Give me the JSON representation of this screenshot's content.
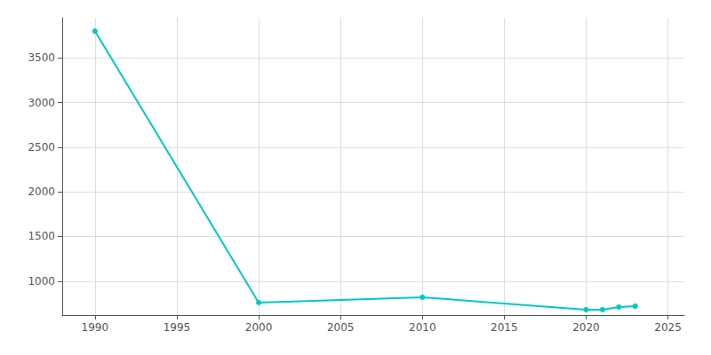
{
  "chart_data": {
    "type": "line",
    "x": [
      1990,
      2000,
      2010,
      2020,
      2021,
      2022,
      2023
    ],
    "values": [
      3800,
      760,
      820,
      680,
      680,
      710,
      720
    ],
    "color": "#00C8C8",
    "marker": "circle",
    "xlim": [
      1988,
      2026
    ],
    "ylim": [
      620,
      3950
    ],
    "xticks": [
      1990,
      1995,
      2000,
      2005,
      2010,
      2015,
      2020,
      2025
    ],
    "yticks": [
      1000,
      1500,
      2000,
      2500,
      3000,
      3500
    ],
    "grid": true
  }
}
